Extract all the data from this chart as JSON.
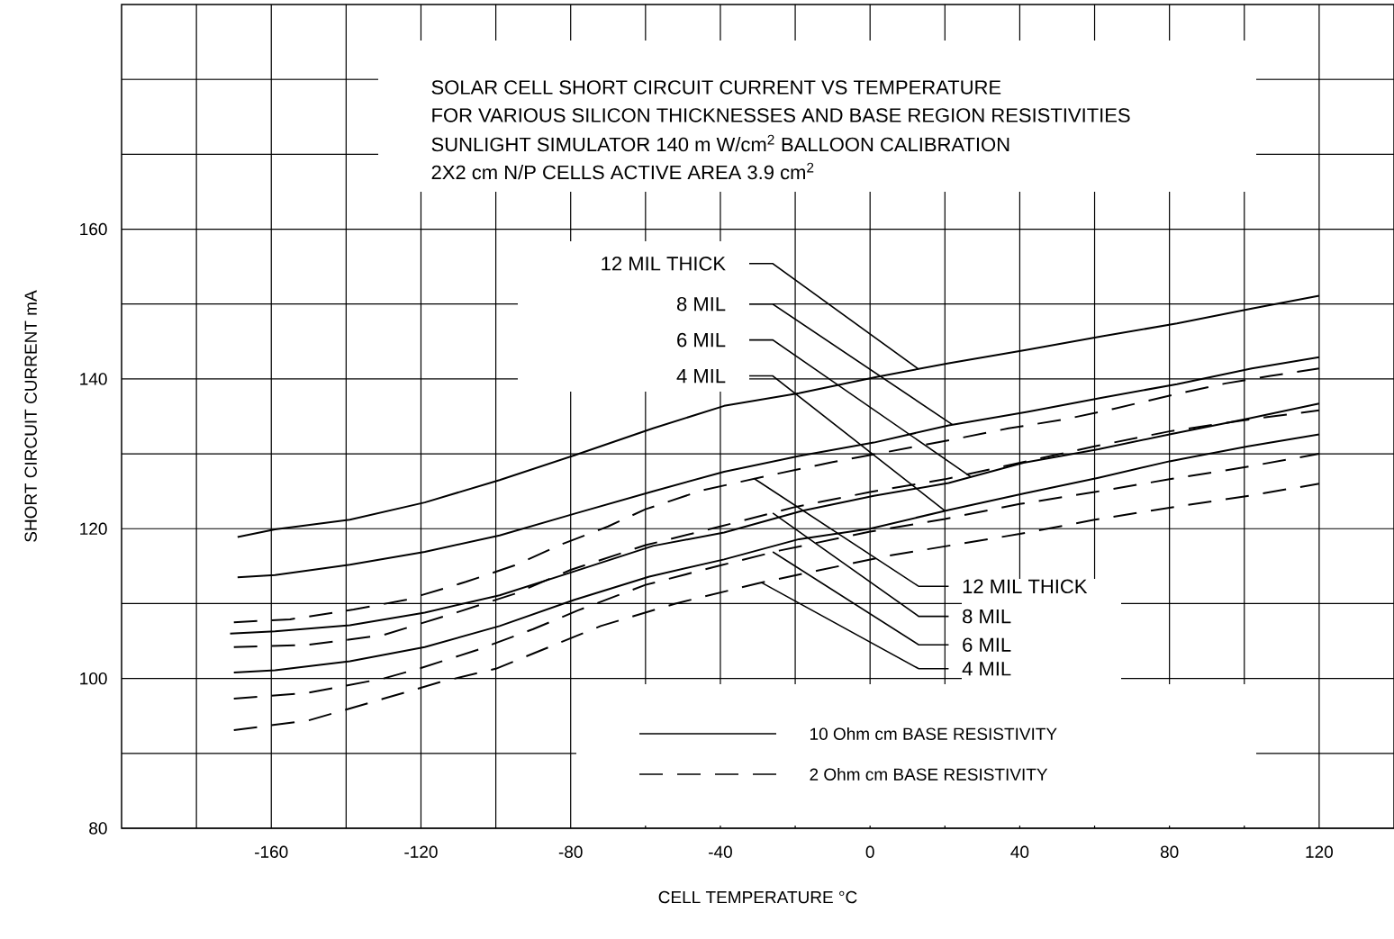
{
  "chart_data": {
    "type": "line",
    "title": "SOLAR CELL SHORT CIRCUIT CURRENT VS TEMPERATURE",
    "subtitle": "FOR VARIOUS SILICON THICKNESSES AND BASE REGION RESISTIVITIES",
    "xlabel": "CELL TEMPERATURE °C",
    "ylabel": "SHORT CIRCUIT CURRENT mA",
    "annotations": [
      "SUNLIGHT SIMULATOR 140 m W/cm$^{2}$ BALLOON CALIBRATION",
      "2X2 cm N/P CELLS ACTIVE AREA 3.9 cm$^{2}$",
      "10 Ohm cm BASE RESISTIVITY",
      "2 Ohm cm BASE RESISTIVITY",
      {
        "text": "12 MIL THICK",
        "x": 13,
        "y": 141.3
      },
      {
        "text": "8 MIL",
        "x": 22,
        "y": 133.9
      },
      {
        "text": "6 MIL",
        "x": 27,
        "y": 126.9
      },
      {
        "text": "4 MIL",
        "x": 20,
        "y": 122.4
      },
      {
        "text": "12 MIL THICK",
        "x": -31,
        "y": 126.7
      },
      {
        "text": "8 MIL",
        "x": -26,
        "y": 122.1
      },
      {
        "text": "6 MIL",
        "x": -26,
        "y": 116.9
      },
      {
        "text": "4 MIL",
        "x": -29,
        "y": 112.8
      }
    ],
    "xlim": [
      -200,
      140
    ],
    "ylim": [
      80,
      190
    ],
    "xticks": [
      {
        "value": -180,
        "label": null
      },
      -160,
      {
        "value": -140,
        "label": null
      },
      -120,
      {
        "value": -100,
        "label": null
      },
      -80,
      {
        "value": -60,
        "label": null
      },
      -40,
      {
        "value": -20,
        "label": null
      },
      0,
      {
        "value": 20,
        "label": null
      },
      40,
      {
        "value": 60,
        "label": null
      },
      80,
      {
        "value": 100,
        "label": null
      },
      120
    ],
    "yticks": [
      80,
      {
        "value": 90,
        "label": null
      },
      100,
      {
        "value": 110,
        "label": null
      },
      120,
      {
        "value": 130,
        "label": null
      },
      140,
      {
        "value": 150,
        "label": null
      },
      160,
      {
        "value": 170,
        "label": null
      },
      {
        "value": 180,
        "label": null
      }
    ],
    "grid": true,
    "series": [
      {
        "color": "#000000",
        "line_style": "solid",
        "x": [
          -169,
          -159,
          -139,
          -119,
          -99,
          -79,
          -58,
          -39,
          -19,
          2,
          21,
          42,
          62,
          82,
          102,
          120
        ],
        "values": [
          118.9,
          119.9,
          121.2,
          123.5,
          126.5,
          129.8,
          133.4,
          136.4,
          138.1,
          140.3,
          142.1,
          143.9,
          145.7,
          147.4,
          149.4,
          151.1
        ]
      },
      {
        "color": "#000000",
        "line_style": "solid",
        "x": [
          -169,
          -159,
          -139,
          -119,
          -99,
          -79,
          -58,
          -39,
          -19,
          1,
          21,
          42,
          62,
          82,
          102,
          120
        ],
        "values": [
          113.5,
          113.8,
          115.2,
          116.9,
          119.1,
          122,
          125,
          127.6,
          129.7,
          131.5,
          133.8,
          135.6,
          137.5,
          139.3,
          141.4,
          142.9
        ]
      },
      {
        "color": "#000000",
        "line_style": "solid",
        "x": [
          -171,
          -159,
          -139,
          -119,
          -99,
          -79,
          -58,
          -39,
          -18,
          1,
          21,
          41,
          61,
          80,
          101,
          120
        ],
        "values": [
          106,
          106.3,
          107.1,
          108.8,
          111.1,
          114.3,
          117.7,
          119.5,
          122.4,
          124.4,
          126.1,
          128.8,
          130.6,
          132.6,
          134.7,
          136.7
        ]
      },
      {
        "color": "#000000",
        "line_style": "solid",
        "x": [
          -170,
          -159,
          -139,
          -119,
          -99,
          -79,
          -59,
          -39,
          -19,
          0,
          21,
          41,
          61,
          80,
          101,
          120
        ],
        "values": [
          100.8,
          101.1,
          102.3,
          104.2,
          107,
          110.5,
          113.6,
          115.9,
          118.6,
          120,
          122.5,
          124.7,
          126.8,
          129,
          131,
          132.6
        ]
      },
      {
        "color": "#000000",
        "line_style": "dashed",
        "x": [
          -170,
          -155,
          -138,
          -124,
          -108,
          -95,
          -82,
          -70,
          -60,
          -45,
          -28,
          -10,
          3,
          22,
          37,
          52,
          65,
          82,
          95,
          107,
          120
        ],
        "values": [
          107.5,
          107.9,
          109.2,
          110.5,
          112.9,
          115.1,
          118,
          120.3,
          122.6,
          125.1,
          127,
          128.9,
          130.1,
          131.9,
          133.4,
          134.6,
          136,
          138,
          139.4,
          140.4,
          141.4
        ]
      },
      {
        "color": "#000000",
        "line_style": "dashed",
        "x": [
          -170,
          -150,
          -130,
          -110,
          -95,
          -80,
          -60,
          -40,
          -20,
          0,
          20,
          40,
          60,
          80,
          100,
          120
        ],
        "values": [
          104.2,
          104.5,
          105.8,
          108.9,
          111.3,
          114.5,
          117.8,
          120.3,
          122.9,
          124.9,
          126.6,
          128.8,
          131,
          133,
          134.5,
          135.8
        ]
      },
      {
        "color": "#000000",
        "line_style": "dashed",
        "x": [
          -170,
          -150,
          -130,
          -120,
          -105,
          -90,
          -78,
          -60,
          -40,
          -24,
          0,
          20,
          40,
          60,
          80,
          100,
          120
        ],
        "values": [
          97.3,
          98.1,
          100,
          101.4,
          103.8,
          106.6,
          109.1,
          112.5,
          115.1,
          117.1,
          119.6,
          121.3,
          123.3,
          124.9,
          126.6,
          128.2,
          130
        ]
      },
      {
        "color": "#000000",
        "line_style": "dashed",
        "x": [
          -170,
          -150,
          -130,
          -115,
          -100,
          -72,
          -52,
          -30,
          -14,
          5,
          40,
          60,
          80,
          100,
          120
        ],
        "values": [
          93.1,
          94.4,
          97.3,
          99.5,
          101.3,
          107,
          110,
          112.7,
          114.4,
          116.4,
          119.3,
          121.2,
          122.8,
          124.3,
          126
        ]
      }
    ]
  }
}
